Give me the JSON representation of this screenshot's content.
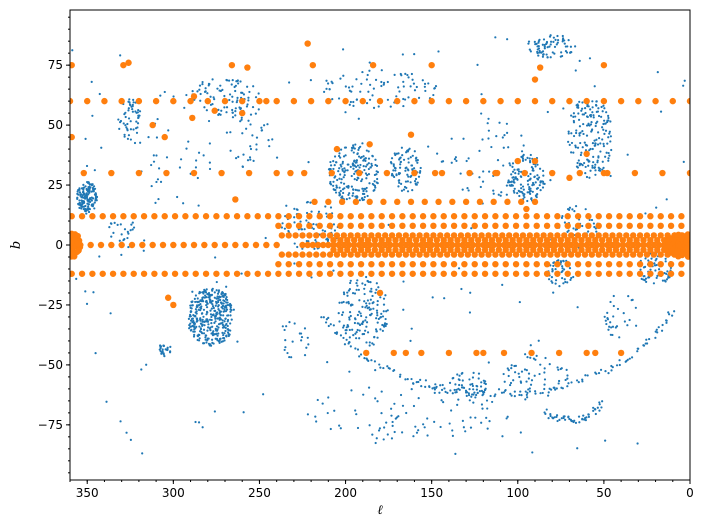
{
  "chart_data": {
    "type": "scatter",
    "xlabel": "ℓ",
    "ylabel": "b",
    "xlim": [
      360,
      0
    ],
    "ylim": [
      -98,
      98
    ],
    "x_reversed": true,
    "grid": false,
    "legend": "none",
    "x_ticks": [
      350,
      300,
      250,
      200,
      150,
      100,
      50,
      0
    ],
    "y_ticks": [
      -75,
      -50,
      -25,
      0,
      25,
      50,
      75
    ],
    "x_minor_step": 10,
    "y_minor_step": 5,
    "series": [
      {
        "color": "#1f77b4",
        "marker": "small",
        "clusters": [
          {
            "l": 350,
            "b": 20,
            "rl": 6,
            "rb": 7,
            "n": 150
          },
          {
            "l": 278,
            "b": -30,
            "rl": 14,
            "rb": 12,
            "n": 360
          },
          {
            "l": 195,
            "b": 30,
            "rl": 15,
            "rb": 12,
            "n": 200
          },
          {
            "l": 165,
            "b": 32,
            "rl": 9,
            "rb": 10,
            "n": 90
          },
          {
            "l": 95,
            "b": 28,
            "rl": 11,
            "rb": 10,
            "n": 120
          },
          {
            "l": 58,
            "b": 45,
            "rl": 13,
            "rb": 17,
            "n": 180
          },
          {
            "l": 80,
            "b": 83,
            "rl": 15,
            "rb": 5,
            "n": 70
          },
          {
            "l": 325,
            "b": 52,
            "rl": 7,
            "rb": 9,
            "n": 50
          },
          {
            "l": 190,
            "b": -28,
            "rl": 15,
            "rb": 15,
            "n": 150
          },
          {
            "l": 128,
            "b": -58,
            "rl": 12,
            "rb": 5,
            "n": 50
          },
          {
            "l": 75,
            "b": -12,
            "rl": 8,
            "rb": 6,
            "n": 40
          },
          {
            "l": 270,
            "b": 62,
            "rl": 20,
            "rb": 8,
            "n": 90
          },
          {
            "l": 180,
            "b": 65,
            "rl": 35,
            "rb": 8,
            "n": 80
          },
          {
            "l": 20,
            "b": -10,
            "rl": 10,
            "rb": 7,
            "n": 60
          },
          {
            "l": 65,
            "b": 8,
            "rl": 12,
            "rb": 12,
            "n": 50
          },
          {
            "l": 165,
            "b": -70,
            "rl": 60,
            "rb": 12,
            "n": 90
          },
          {
            "l": 220,
            "b": 8,
            "rl": 18,
            "rb": 10,
            "n": 80
          },
          {
            "l": 120,
            "b": 35,
            "rl": 25,
            "rb": 20,
            "n": 50
          },
          {
            "l": 255,
            "b": 45,
            "rl": 15,
            "rb": 15,
            "n": 40
          },
          {
            "l": 230,
            "b": -40,
            "rl": 10,
            "rb": 8,
            "n": 20
          },
          {
            "l": 305,
            "b": -44,
            "rl": 4,
            "rb": 3,
            "n": 25
          },
          {
            "l": 90,
            "b": -55,
            "rl": 20,
            "rb": 10,
            "n": 60
          },
          {
            "l": 40,
            "b": -30,
            "rl": 10,
            "rb": 10,
            "n": 30
          },
          {
            "l": 330,
            "b": 5,
            "rl": 8,
            "rb": 8,
            "n": 25
          },
          {
            "l": 300,
            "b": 40,
            "rl": 25,
            "rb": 25,
            "n": 40
          }
        ],
        "arcs": [
          {
            "cl": 112,
            "cb": -10,
            "rl": 108,
            "rb": 52,
            "t0": 200,
            "t1": 340,
            "n": 140
          },
          {
            "cl": 70,
            "cb": -45,
            "rl": 30,
            "rb": 28,
            "t0": 230,
            "t1": 300,
            "n": 50
          }
        ],
        "random_points": 160
      },
      {
        "color": "#ff7f0e",
        "marker": "large",
        "grid_rows": [
          {
            "b": 0,
            "l0": 0,
            "l1": 225,
            "step": 3
          },
          {
            "b": -2,
            "l0": 3,
            "l1": 210,
            "step": 4
          },
          {
            "b": 2,
            "l0": 3,
            "l1": 210,
            "step": 4
          },
          {
            "b": -4,
            "l0": 5,
            "l1": 240,
            "step": 4
          },
          {
            "b": 4,
            "l0": 5,
            "l1": 240,
            "step": 4
          },
          {
            "b": -8,
            "l0": 5,
            "l1": 240,
            "step": 6
          },
          {
            "b": 8,
            "l0": 5,
            "l1": 240,
            "step": 6
          },
          {
            "b": -12,
            "l0": 5,
            "l1": 360,
            "step": 6
          },
          {
            "b": 12,
            "l0": 5,
            "l1": 360,
            "step": 6
          },
          {
            "b": 18,
            "l0": 90,
            "l1": 225,
            "step": 8
          },
          {
            "b": 0,
            "l0": 240,
            "l1": 360,
            "step": 6
          },
          {
            "b": 60,
            "l0": 0,
            "l1": 360,
            "step": 10
          },
          {
            "b": 30,
            "l0": 0,
            "l1": 360,
            "step": 16
          },
          {
            "b": -45,
            "l0": 60,
            "l1": 195,
            "step": 16
          }
        ],
        "dense_clusters": [
          {
            "l": 358,
            "b": 0,
            "rl": 4,
            "rb": 5,
            "n": 45
          },
          {
            "l": 7,
            "b": 0,
            "rl": 8,
            "rb": 5,
            "n": 60
          },
          {
            "l": 1,
            "b": 0,
            "rl": 1.5,
            "rb": 5,
            "n": 25
          }
        ],
        "extra_points": [
          [
            222,
            84
          ],
          [
            359,
            75
          ],
          [
            329,
            75
          ],
          [
            326,
            76
          ],
          [
            266,
            75
          ],
          [
            257,
            74
          ],
          [
            219,
            75
          ],
          [
            184,
            75
          ],
          [
            150,
            75
          ],
          [
            87,
            74
          ],
          [
            90,
            69
          ],
          [
            50,
            75
          ],
          [
            359,
            45
          ],
          [
            312,
            50
          ],
          [
            305,
            45
          ],
          [
            260,
            55
          ],
          [
            289,
            53
          ],
          [
            276,
            56
          ],
          [
            205,
            40
          ],
          [
            186,
            42
          ],
          [
            162,
            46
          ],
          [
            148,
            30
          ],
          [
            113,
            30
          ],
          [
            100,
            35
          ],
          [
            90,
            35
          ],
          [
            70,
            28
          ],
          [
            60,
            38
          ],
          [
            50,
            30
          ],
          [
            288,
            62
          ],
          [
            246,
            60
          ],
          [
            180,
            -20
          ],
          [
            165,
            -45
          ],
          [
            120,
            -45
          ],
          [
            300,
            -25
          ],
          [
            303,
            -22
          ],
          [
            264,
            19
          ],
          [
            232,
            30
          ],
          [
            95,
            15
          ],
          [
            40,
            -45
          ],
          [
            55,
            -45
          ]
        ]
      }
    ]
  }
}
